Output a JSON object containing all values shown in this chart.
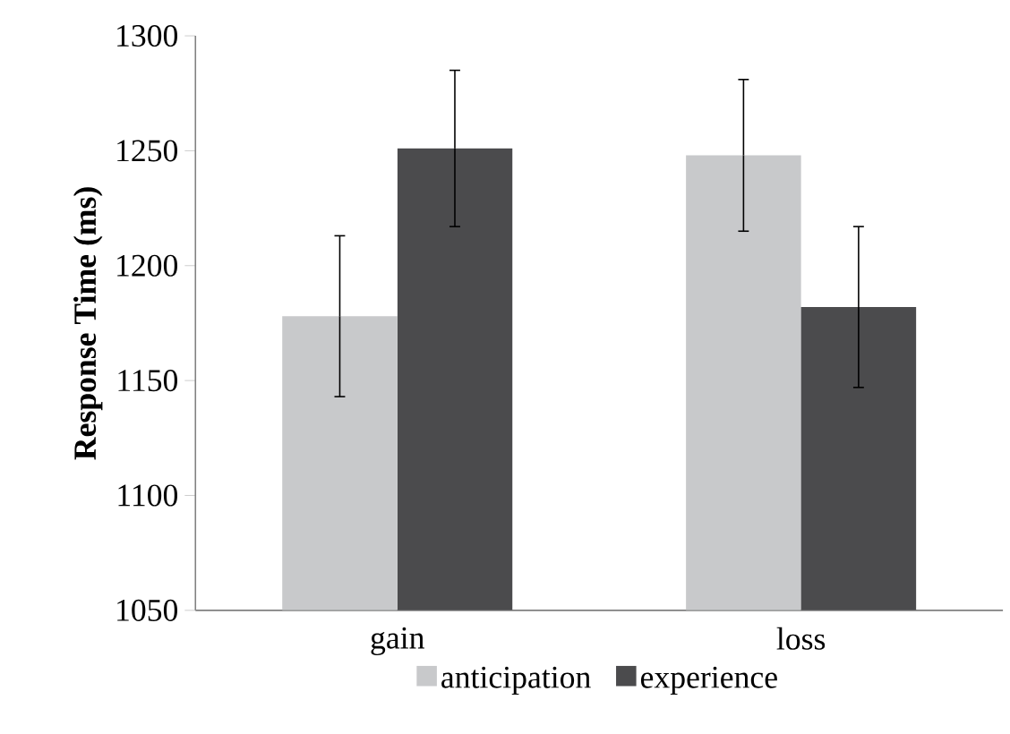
{
  "chart_data": {
    "type": "bar",
    "ylabel": "**Response Time (ms)**",
    "categories": [
      "gain",
      "loss"
    ],
    "series": [
      {
        "name": "anticipation",
        "color": "#c8c9cb",
        "values": [
          1178,
          1248
        ],
        "errors": [
          35,
          33
        ]
      },
      {
        "name": "experience",
        "color": "#4b4b4d",
        "values": [
          1251,
          1182
        ],
        "errors": [
          34,
          35
        ]
      }
    ],
    "ylim": [
      1050,
      1300
    ],
    "yticks": [
      1050,
      1100,
      1150,
      1200,
      1250,
      1300
    ],
    "grid": false,
    "legend": "bottom"
  }
}
